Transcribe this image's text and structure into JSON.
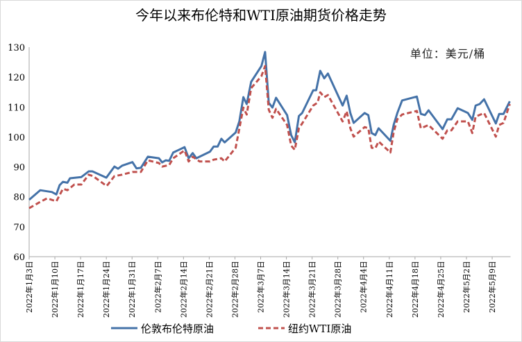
{
  "chart_data": {
    "type": "line",
    "title": "今年以来布伦特和WTI原油期货价格走势",
    "unit_label": "单位：美元/桶",
    "xlabel": "",
    "ylabel": "",
    "ylim": [
      60,
      130
    ],
    "yticks": [
      60,
      70,
      80,
      90,
      100,
      110,
      120,
      130
    ],
    "x_unit": "days since 2022-01-03",
    "xlim": [
      0,
      131
    ],
    "xticks": [
      {
        "day": 0,
        "label": "2022年1月3日"
      },
      {
        "day": 7,
        "label": "2022年1月10日"
      },
      {
        "day": 14,
        "label": "2022年1月17日"
      },
      {
        "day": 21,
        "label": "2022年1月24日"
      },
      {
        "day": 28,
        "label": "2022年1月31日"
      },
      {
        "day": 35,
        "label": "2022年2月7日"
      },
      {
        "day": 42,
        "label": "2022年2月14日"
      },
      {
        "day": 49,
        "label": "2022年2月21日"
      },
      {
        "day": 56,
        "label": "2022年2月28日"
      },
      {
        "day": 63,
        "label": "2022年3月7日"
      },
      {
        "day": 70,
        "label": "2022年3月14日"
      },
      {
        "day": 77,
        "label": "2022年3月21日"
      },
      {
        "day": 84,
        "label": "2022年3月28日"
      },
      {
        "day": 91,
        "label": "2022年4月4日"
      },
      {
        "day": 98,
        "label": "2022年4月11日"
      },
      {
        "day": 105,
        "label": "2022年4月18日"
      },
      {
        "day": 112,
        "label": "2022年4月25日"
      },
      {
        "day": 119,
        "label": "2022年5月2日"
      },
      {
        "day": 126,
        "label": "2022年5月9日"
      }
    ],
    "grid": false,
    "legend_position": "bottom",
    "series": [
      {
        "name": "伦敦布伦特原油",
        "color": "#4472a8",
        "style": "solid",
        "points": [
          [
            0,
            79.0
          ],
          [
            3,
            82.2
          ],
          [
            6.2,
            81.6
          ],
          [
            7.4,
            80.8
          ],
          [
            8.3,
            83.9
          ],
          [
            9.2,
            85.0
          ],
          [
            10.4,
            84.7
          ],
          [
            11.1,
            86.2
          ],
          [
            14.2,
            86.6
          ],
          [
            16.2,
            88.5
          ],
          [
            17.2,
            88.5
          ],
          [
            21,
            86.4
          ],
          [
            23.2,
            90.1
          ],
          [
            24.2,
            89.4
          ],
          [
            25.3,
            90.4
          ],
          [
            28.1,
            91.6
          ],
          [
            29.2,
            89.5
          ],
          [
            30.4,
            89.7
          ],
          [
            32.3,
            93.4
          ],
          [
            35.3,
            92.9
          ],
          [
            36.2,
            91.5
          ],
          [
            37.2,
            92.2
          ],
          [
            38.1,
            92.0
          ],
          [
            39.2,
            94.8
          ],
          [
            42.3,
            96.6
          ],
          [
            43.4,
            92.9
          ],
          [
            44.5,
            94.6
          ],
          [
            45.5,
            92.9
          ],
          [
            49.2,
            95.1
          ],
          [
            50.2,
            96.8
          ],
          [
            51.3,
            96.8
          ],
          [
            52.3,
            99.4
          ],
          [
            53.2,
            98.2
          ],
          [
            56.2,
            101.5
          ],
          [
            57.2,
            105.2
          ],
          [
            58.3,
            113.3
          ],
          [
            59.2,
            111.0
          ],
          [
            60.4,
            118.4
          ],
          [
            63.2,
            123.7
          ],
          [
            64.2,
            128.4
          ],
          [
            65.2,
            111.4
          ],
          [
            66.2,
            109.8
          ],
          [
            67.2,
            113.1
          ],
          [
            70.2,
            107.3
          ],
          [
            71.3,
            100.6
          ],
          [
            72.3,
            98.2
          ],
          [
            73.4,
            107.0
          ],
          [
            74.3,
            108.0
          ],
          [
            77.3,
            115.6
          ],
          [
            78.1,
            115.6
          ],
          [
            79.2,
            122.1
          ],
          [
            80.3,
            119.6
          ],
          [
            81.3,
            121.2
          ],
          [
            85.3,
            110.5
          ],
          [
            86.4,
            113.8
          ],
          [
            87.4,
            108.0
          ],
          [
            88.3,
            104.7
          ],
          [
            91.3,
            108.0
          ],
          [
            92.3,
            107.3
          ],
          [
            93.2,
            101.3
          ],
          [
            94.2,
            100.6
          ],
          [
            95.1,
            102.9
          ],
          [
            98.3,
            98.7
          ],
          [
            99.2,
            104.1
          ],
          [
            100.2,
            108.0
          ],
          [
            101.5,
            112.2
          ],
          [
            105.5,
            113.5
          ],
          [
            106.6,
            107.7
          ],
          [
            107.7,
            107.3
          ],
          [
            108.7,
            108.9
          ],
          [
            112.5,
            102.6
          ],
          [
            113.8,
            105.9
          ],
          [
            114.9,
            105.9
          ],
          [
            116.6,
            109.6
          ],
          [
            119.4,
            108.0
          ],
          [
            120.6,
            105.7
          ],
          [
            121.5,
            110.5
          ],
          [
            122.6,
            111.0
          ],
          [
            123.8,
            112.6
          ],
          [
            127,
            104.5
          ],
          [
            127.9,
            107.7
          ],
          [
            129.1,
            107.7
          ],
          [
            130.8,
            111.9
          ]
        ]
      },
      {
        "name": "纽约WTI原油",
        "color": "#c0504d",
        "style": "dashed",
        "points": [
          [
            0,
            76.2
          ],
          [
            3,
            78.3
          ],
          [
            4.9,
            79.5
          ],
          [
            7.4,
            78.5
          ],
          [
            9.2,
            82.7
          ],
          [
            10.4,
            82.2
          ],
          [
            12.3,
            84.1
          ],
          [
            14.2,
            84.1
          ],
          [
            16.2,
            87.4
          ],
          [
            17.4,
            86.9
          ],
          [
            21.1,
            83.6
          ],
          [
            23.2,
            86.9
          ],
          [
            25.3,
            87.4
          ],
          [
            28.1,
            88.3
          ],
          [
            30.4,
            88.3
          ],
          [
            32.3,
            92.2
          ],
          [
            35.3,
            91.3
          ],
          [
            36.2,
            90.1
          ],
          [
            38.1,
            90.6
          ],
          [
            39.2,
            92.9
          ],
          [
            42.3,
            95.5
          ],
          [
            43.4,
            91.8
          ],
          [
            44.5,
            93.4
          ],
          [
            46.4,
            91.8
          ],
          [
            49.2,
            91.8
          ],
          [
            50.2,
            92.4
          ],
          [
            52.3,
            92.9
          ],
          [
            53.2,
            91.8
          ],
          [
            56.2,
            96.4
          ],
          [
            58.3,
            109.8
          ],
          [
            59.2,
            107.5
          ],
          [
            60.4,
            116.3
          ],
          [
            63.2,
            120.3
          ],
          [
            64.2,
            123.7
          ],
          [
            65.2,
            109.1
          ],
          [
            66.2,
            106.4
          ],
          [
            67.2,
            109.4
          ],
          [
            70.2,
            104.0
          ],
          [
            71.3,
            97.1
          ],
          [
            72.3,
            95.7
          ],
          [
            73.4,
            102.9
          ],
          [
            74.3,
            104.5
          ],
          [
            77.3,
            110.5
          ],
          [
            78.5,
            111.5
          ],
          [
            79.2,
            114.9
          ],
          [
            80.3,
            113.3
          ],
          [
            81.3,
            114.0
          ],
          [
            85.3,
            105.2
          ],
          [
            86.4,
            108.6
          ],
          [
            87.4,
            102.9
          ],
          [
            88.3,
            100.1
          ],
          [
            91.3,
            103.3
          ],
          [
            92.3,
            102.9
          ],
          [
            93.2,
            96.4
          ],
          [
            94.2,
            96.2
          ],
          [
            95.1,
            98.5
          ],
          [
            98.3,
            94.8
          ],
          [
            99.2,
            101.7
          ],
          [
            100.2,
            105.9
          ],
          [
            101.5,
            107.5
          ],
          [
            105.5,
            108.7
          ],
          [
            106.6,
            102.9
          ],
          [
            108.7,
            104.0
          ],
          [
            112.5,
            99.4
          ],
          [
            113.8,
            102.2
          ],
          [
            114.9,
            102.2
          ],
          [
            116.6,
            105.2
          ],
          [
            119.4,
            105.2
          ],
          [
            120.6,
            101.3
          ],
          [
            121.5,
            106.8
          ],
          [
            123.8,
            108.0
          ],
          [
            127,
            100.1
          ],
          [
            127.9,
            104.0
          ],
          [
            129.1,
            104.7
          ],
          [
            130.8,
            111.0
          ]
        ]
      }
    ]
  }
}
